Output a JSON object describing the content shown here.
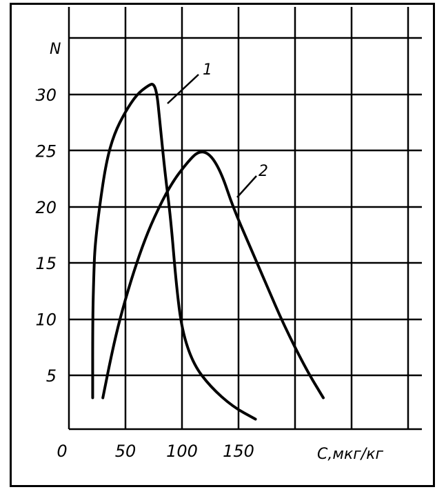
{
  "chart_data": {
    "type": "line",
    "title": "",
    "ylabel": "N",
    "xlabel": "C,мкг/кг",
    "xlim": [
      0,
      250
    ],
    "ylim": [
      0,
      35
    ],
    "grid": true,
    "x_ticks": [
      0,
      50,
      100,
      150
    ],
    "x_tick_labels": [
      "0",
      "50",
      "100",
      "150"
    ],
    "y_ticks": [
      5,
      10,
      15,
      20,
      25,
      30
    ],
    "y_tick_labels": [
      "5",
      "10",
      "15",
      "20",
      "25",
      "30"
    ],
    "series": [
      {
        "name": "1",
        "color": "#000000",
        "points": [
          [
            21,
            3
          ],
          [
            21,
            10
          ],
          [
            22,
            14
          ],
          [
            23,
            16.5
          ],
          [
            27,
            20
          ],
          [
            33,
            24
          ],
          [
            40,
            26.5
          ],
          [
            50,
            28.5
          ],
          [
            60,
            30
          ],
          [
            70,
            30.8
          ],
          [
            75,
            31
          ],
          [
            78,
            30
          ],
          [
            80,
            28
          ],
          [
            85,
            23
          ],
          [
            90,
            19
          ],
          [
            95,
            13
          ],
          [
            100,
            9
          ],
          [
            110,
            6
          ],
          [
            125,
            4
          ],
          [
            145,
            2.2
          ],
          [
            165,
            1.1
          ]
        ]
      },
      {
        "name": "2",
        "color": "#000000",
        "points": [
          [
            30,
            3
          ],
          [
            38,
            7
          ],
          [
            45,
            10
          ],
          [
            55,
            13.5
          ],
          [
            65,
            16.5
          ],
          [
            75,
            19
          ],
          [
            90,
            22
          ],
          [
            105,
            24
          ],
          [
            115,
            25
          ],
          [
            125,
            24.7
          ],
          [
            135,
            23
          ],
          [
            145,
            20
          ],
          [
            160,
            16.5
          ],
          [
            175,
            13
          ],
          [
            190,
            9.5
          ],
          [
            210,
            5.5
          ],
          [
            225,
            3
          ]
        ]
      }
    ]
  }
}
